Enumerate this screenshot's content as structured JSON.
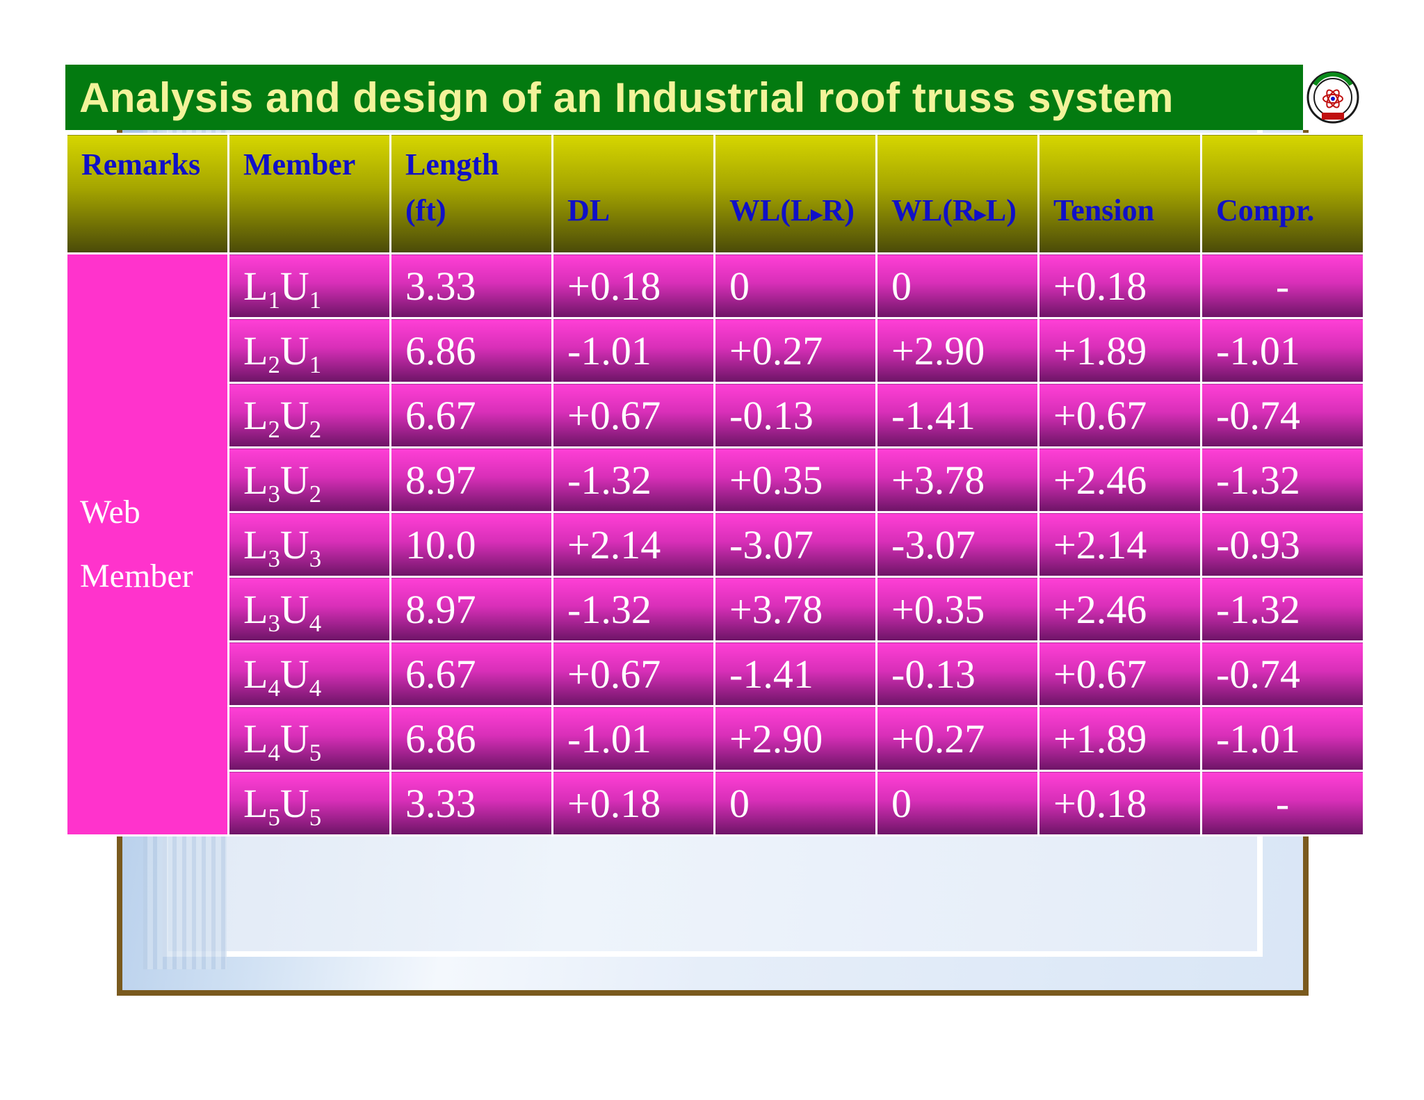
{
  "title": "Analysis and design of an Industrial roof truss system",
  "header": {
    "remarks": "Remarks",
    "member": "Member",
    "length_line1": "Length",
    "length_line2": "(ft)",
    "dl": "DL",
    "wl_lr_a": "WL(L",
    "wl_lr_b": "R)",
    "wl_rl_a": "WL(R",
    "wl_rl_b": "L)",
    "tension": "Tension",
    "compr": "Compr."
  },
  "remarks": {
    "line1": "Web",
    "line2": "Member"
  },
  "rows": [
    {
      "m1": "L",
      "s1": "1",
      "m2": "U",
      "s2": "1",
      "length": "3.33",
      "dl": "+0.18",
      "wl_lr": "0",
      "wl_rl": "0",
      "tension": "+0.18",
      "compr": "-"
    },
    {
      "m1": "L",
      "s1": "2",
      "m2": "U",
      "s2": "1",
      "length": "6.86",
      "dl": "-1.01",
      "wl_lr": "+0.27",
      "wl_rl": "+2.90",
      "tension": "+1.89",
      "compr": "-1.01"
    },
    {
      "m1": "L",
      "s1": "2",
      "m2": "U",
      "s2": "2",
      "length": "6.67",
      "dl": "+0.67",
      "wl_lr": "-0.13",
      "wl_rl": "-1.41",
      "tension": "+0.67",
      "compr": "-0.74"
    },
    {
      "m1": "L",
      "s1": "3",
      "m2": "U",
      "s2": "2",
      "length": "8.97",
      "dl": "-1.32",
      "wl_lr": "+0.35",
      "wl_rl": "+3.78",
      "tension": "+2.46",
      "compr": "-1.32"
    },
    {
      "m1": "L",
      "s1": "3",
      "m2": "U",
      "s2": "3",
      "length": "10.0",
      "dl": "+2.14",
      "wl_lr": "-3.07",
      "wl_rl": "-3.07",
      "tension": "+2.14",
      "compr": "-0.93"
    },
    {
      "m1": "L",
      "s1": "3",
      "m2": "U",
      "s2": "4",
      "length": "8.97",
      "dl": "-1.32",
      "wl_lr": "+3.78",
      "wl_rl": "+0.35",
      "tension": "+2.46",
      "compr": "-1.32"
    },
    {
      "m1": "L",
      "s1": "4",
      "m2": "U",
      "s2": "4",
      "length": "6.67",
      "dl": "+0.67",
      "wl_lr": "-1.41",
      "wl_rl": "-0.13",
      "tension": "+0.67",
      "compr": "-0.74"
    },
    {
      "m1": "L",
      "s1": "4",
      "m2": "U",
      "s2": "5",
      "length": "6.86",
      "dl": "-1.01",
      "wl_lr": "+2.90",
      "wl_rl": "+0.27",
      "tension": "+1.89",
      "compr": "-1.01"
    },
    {
      "m1": "L",
      "s1": "5",
      "m2": "U",
      "s2": "5",
      "length": "3.33",
      "dl": "+0.18",
      "wl_lr": "0",
      "wl_rl": "0",
      "tension": "+0.18",
      "compr": "-"
    }
  ],
  "colors": {
    "title_bg": "#037a10",
    "title_text": "#f3f39a",
    "header_text": "#1010c8",
    "row_pink": "#ff3fd6",
    "row_dark": "#6d1466"
  },
  "icons": {
    "logo": "university-seal-icon"
  }
}
